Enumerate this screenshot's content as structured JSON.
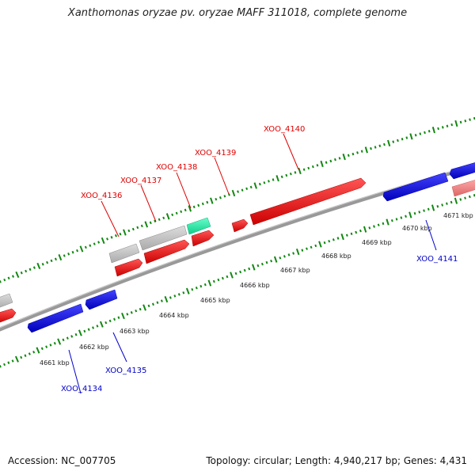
{
  "header": {
    "title": "Xanthomonas oryzae pv. oryzae MAFF 311018, complete genome"
  },
  "footer": {
    "accession": "Accession: NC_007705",
    "summary": "Topology: circular; Length: 4,940,217 bp; Genes: 4,431"
  },
  "colors": {
    "forward": "#ee1111",
    "forward_light": "#ee8888",
    "reverse": "#1111ee",
    "pseudo": "#bbbbbb",
    "rna": "#22ee99",
    "backbone": "#888888",
    "ticks": "#118811",
    "label_forward": "#dd0000",
    "label_reverse": "#0000cc"
  },
  "scale": {
    "unit": "kbp",
    "ticks": [
      {
        "kbp": 4661,
        "label": "4661 kbp"
      },
      {
        "kbp": 4662,
        "label": "4662 kbp"
      },
      {
        "kbp": 4663,
        "label": "4663 kbp"
      },
      {
        "kbp": 4664,
        "label": "4664 kbp"
      },
      {
        "kbp": 4665,
        "label": "4665 kbp"
      },
      {
        "kbp": 4666,
        "label": "4666 kbp"
      },
      {
        "kbp": 4667,
        "label": "4667 kbp"
      },
      {
        "kbp": 4668,
        "label": "4668 kbp"
      },
      {
        "kbp": 4669,
        "label": "4669 kbp"
      },
      {
        "kbp": 4670,
        "label": "4670 kbp"
      },
      {
        "kbp": 4671,
        "label": "4671 kbp"
      }
    ]
  },
  "genes": [
    {
      "id": "XOO_4134",
      "strand": "reverse"
    },
    {
      "id": "XOO_4135",
      "strand": "reverse"
    },
    {
      "id": "XOO_4136",
      "strand": "forward"
    },
    {
      "id": "XOO_4137",
      "strand": "forward"
    },
    {
      "id": "XOO_4138",
      "strand": "forward"
    },
    {
      "id": "XOO_4139",
      "strand": "forward"
    },
    {
      "id": "XOO_4140",
      "strand": "forward"
    },
    {
      "id": "XOO_4141",
      "strand": "reverse"
    }
  ]
}
